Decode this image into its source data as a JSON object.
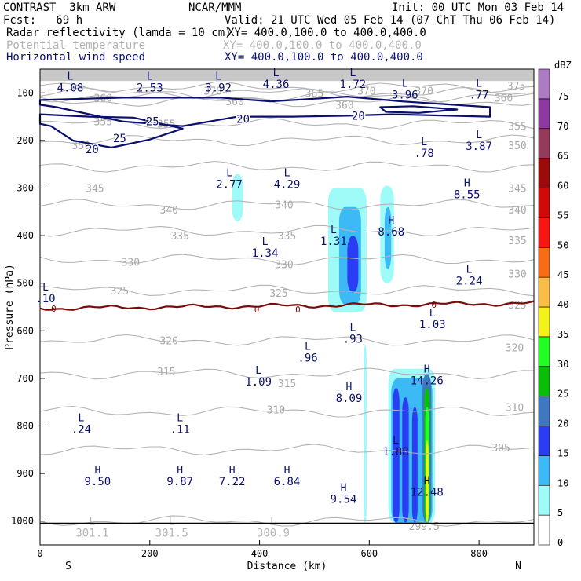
{
  "header": {
    "title": "CONTRAST  3km ARW",
    "org": "NCAR/MMM",
    "init": "Init: 00 UTC Mon 03 Feb 14",
    "fcst": "Fcst:   69 h",
    "valid": "Valid: 21 UTC Wed 05 Feb 14 (07 ChT Thu 06 Feb 14)",
    "fields": [
      {
        "name": "Radar reflectivity (lamda = 10 cm)",
        "xy": "XY= 400.0,100.0 to 400.0,400.0",
        "color": "#000000"
      },
      {
        "name": "Potential temperature",
        "xy": "XY= 400.0,100.0 to 400.0,400.0",
        "color": "#b4b4b4"
      },
      {
        "name": "Horizontal wind speed",
        "xy": "XY= 400.0,100.0 to 400.0,400.0",
        "color": "#0a0f6e"
      }
    ]
  },
  "chart_data": {
    "type": "cross-section",
    "xlabel": "Distance (km)",
    "ylabel": "Pressure (hPa)",
    "xlim": [
      0,
      900
    ],
    "ylim": [
      1050,
      50
    ],
    "xticks": [
      0,
      200,
      400,
      600,
      800
    ],
    "yticks": [
      100,
      200,
      300,
      400,
      500,
      600,
      700,
      800,
      900,
      1000
    ],
    "x_end_labels": {
      "left": "S",
      "right": "N"
    },
    "colorbar": {
      "unit": "dBZ",
      "levels": [
        0,
        5,
        10,
        15,
        20,
        25,
        30,
        35,
        40,
        45,
        50,
        55,
        60,
        65,
        70,
        75
      ],
      "colors": [
        "#ffffff",
        "#9ffbf7",
        "#3cbaf5",
        "#2b3df2",
        "#3f78be",
        "#07bf06",
        "#22ff22",
        "#f3f219",
        "#fabe46",
        "#f96b15",
        "#f91515",
        "#d10909",
        "#9c0a0a",
        "#953a5a",
        "#8d399f",
        "#ad7ac4"
      ]
    },
    "theta_levels": [
      300,
      305,
      310,
      315,
      320,
      325,
      330,
      335,
      340,
      345,
      350,
      355,
      360,
      365,
      370,
      375
    ],
    "theta_labels": [
      {
        "text": "375",
        "x": 868,
        "p": 85
      },
      {
        "text": "370",
        "x": 595,
        "p": 95
      },
      {
        "text": "370",
        "x": 700,
        "p": 95
      },
      {
        "text": "370",
        "x": 315,
        "p": 95
      },
      {
        "text": "365",
        "x": 500,
        "p": 100
      },
      {
        "text": "360",
        "x": 115,
        "p": 110
      },
      {
        "text": "360",
        "x": 845,
        "p": 110
      },
      {
        "text": "360",
        "x": 555,
        "p": 125
      },
      {
        "text": "360",
        "x": 355,
        "p": 118
      },
      {
        "text": "355",
        "x": 115,
        "p": 160
      },
      {
        "text": "355",
        "x": 230,
        "p": 165
      },
      {
        "text": "355",
        "x": 870,
        "p": 170
      },
      {
        "text": "350",
        "x": 75,
        "p": 210
      },
      {
        "text": "350",
        "x": 870,
        "p": 210
      },
      {
        "text": "345",
        "x": 100,
        "p": 300
      },
      {
        "text": "345",
        "x": 870,
        "p": 300
      },
      {
        "text": "340",
        "x": 235,
        "p": 345
      },
      {
        "text": "340",
        "x": 445,
        "p": 335
      },
      {
        "text": "340",
        "x": 870,
        "p": 345
      },
      {
        "text": "335",
        "x": 255,
        "p": 400
      },
      {
        "text": "335",
        "x": 450,
        "p": 400
      },
      {
        "text": "335",
        "x": 870,
        "p": 410
      },
      {
        "text": "330",
        "x": 165,
        "p": 455
      },
      {
        "text": "330",
        "x": 445,
        "p": 460
      },
      {
        "text": "330",
        "x": 870,
        "p": 480
      },
      {
        "text": "325",
        "x": 145,
        "p": 515
      },
      {
        "text": "325",
        "x": 435,
        "p": 520
      },
      {
        "text": "325",
        "x": 870,
        "p": 545
      },
      {
        "text": "320",
        "x": 235,
        "p": 620
      },
      {
        "text": "320",
        "x": 865,
        "p": 635
      },
      {
        "text": "315",
        "x": 230,
        "p": 685
      },
      {
        "text": "315",
        "x": 450,
        "p": 710
      },
      {
        "text": "310",
        "x": 430,
        "p": 765
      },
      {
        "text": "310",
        "x": 865,
        "p": 760
      },
      {
        "text": "305",
        "x": 840,
        "p": 845
      },
      {
        "text": "299.5",
        "x": 700,
        "p": 1010
      }
    ],
    "wind_contours": [
      20,
      25
    ],
    "wind_labels": [
      {
        "text": "25",
        "x": 205,
        "p": 160
      },
      {
        "text": "25",
        "x": 145,
        "p": 195
      },
      {
        "text": "20",
        "x": 95,
        "p": 218
      },
      {
        "text": "20",
        "x": 370,
        "p": 155
      },
      {
        "text": "20",
        "x": 580,
        "p": 148
      }
    ],
    "zero_line_labels": [
      {
        "text": "0",
        "x": 25,
        "p": 553
      },
      {
        "text": "0",
        "x": 395,
        "p": 555
      },
      {
        "text": "0",
        "x": 470,
        "p": 555
      },
      {
        "text": "0",
        "x": 718,
        "p": 545
      }
    ],
    "extrema": [
      {
        "kind": "L",
        "value": "4.08",
        "x": 55,
        "p": 72
      },
      {
        "kind": "L",
        "value": "2.53",
        "x": 200,
        "p": 72
      },
      {
        "kind": "L",
        "value": "3.92",
        "x": 325,
        "p": 72
      },
      {
        "kind": "L",
        "value": "4.36",
        "x": 430,
        "p": 65
      },
      {
        "kind": "L",
        "value": "1.72",
        "x": 570,
        "p": 65
      },
      {
        "kind": "L",
        "value": "3.96",
        "x": 665,
        "p": 87
      },
      {
        "kind": "L",
        "value": ".77",
        "x": 800,
        "p": 87
      },
      {
        "kind": "L",
        "value": ".78",
        "x": 700,
        "p": 210
      },
      {
        "kind": "L",
        "value": "3.87",
        "x": 800,
        "p": 195
      },
      {
        "kind": "L",
        "value": "2.77",
        "x": 345,
        "p": 275
      },
      {
        "kind": "L",
        "value": "4.29",
        "x": 450,
        "p": 275
      },
      {
        "kind": "H",
        "value": "8.55",
        "x": 778,
        "p": 297
      },
      {
        "kind": "H",
        "value": "8.68",
        "x": 640,
        "p": 375
      },
      {
        "kind": "L",
        "value": "1.31",
        "x": 535,
        "p": 395
      },
      {
        "kind": "L",
        "value": "1.34",
        "x": 410,
        "p": 420
      },
      {
        "kind": "L",
        "value": "2.24",
        "x": 782,
        "p": 478
      },
      {
        "kind": "L",
        "value": ".10",
        "x": 10,
        "p": 515
      },
      {
        "kind": "L",
        "value": "1.03",
        "x": 715,
        "p": 570
      },
      {
        "kind": "L",
        "value": ".93",
        "x": 570,
        "p": 600
      },
      {
        "kind": "L",
        "value": ".96",
        "x": 488,
        "p": 640
      },
      {
        "kind": "L",
        "value": "1.09",
        "x": 398,
        "p": 690
      },
      {
        "kind": "H",
        "value": "14.26",
        "x": 705,
        "p": 688
      },
      {
        "kind": "H",
        "value": "8.09",
        "x": 563,
        "p": 725
      },
      {
        "kind": "L",
        "value": ".24",
        "x": 75,
        "p": 790
      },
      {
        "kind": "L",
        "value": ".11",
        "x": 255,
        "p": 790
      },
      {
        "kind": "L",
        "value": "1.88",
        "x": 648,
        "p": 837
      },
      {
        "kind": "H",
        "value": "9.50",
        "x": 105,
        "p": 900
      },
      {
        "kind": "H",
        "value": "9.87",
        "x": 255,
        "p": 900
      },
      {
        "kind": "H",
        "value": "7.22",
        "x": 350,
        "p": 900
      },
      {
        "kind": "H",
        "value": "6.84",
        "x": 450,
        "p": 900
      },
      {
        "kind": "H",
        "value": "12.48",
        "x": 705,
        "p": 922
      },
      {
        "kind": "H",
        "value": "9.54",
        "x": 553,
        "p": 937
      },
      {
        "kind": "L",
        "value": "301.1",
        "x": 95,
        "p": 1008
      },
      {
        "kind": "L",
        "value": "301.5",
        "x": 240,
        "p": 1008
      },
      {
        "kind": "L",
        "value": "300.9",
        "x": 425,
        "p": 1008
      }
    ],
    "reflectivity_cells": [
      {
        "x0": 350,
        "x1": 370,
        "ptop": 270,
        "pbot": 370,
        "dbz": 5
      },
      {
        "x0": 525,
        "x1": 595,
        "ptop": 300,
        "pbot": 560,
        "dbz": 5
      },
      {
        "x0": 545,
        "x1": 585,
        "ptop": 340,
        "pbot": 545,
        "dbz": 10
      },
      {
        "x0": 560,
        "x1": 580,
        "ptop": 400,
        "pbot": 520,
        "dbz": 15
      },
      {
        "x0": 620,
        "x1": 645,
        "ptop": 295,
        "pbot": 500,
        "dbz": 5
      },
      {
        "x0": 628,
        "x1": 640,
        "ptop": 340,
        "pbot": 470,
        "dbz": 10
      },
      {
        "x0": 590,
        "x1": 595,
        "ptop": 630,
        "pbot": 1005,
        "dbz": 5
      },
      {
        "x0": 635,
        "x1": 720,
        "ptop": 680,
        "pbot": 1005,
        "dbz": 5
      },
      {
        "x0": 640,
        "x1": 715,
        "ptop": 700,
        "pbot": 1005,
        "dbz": 10
      },
      {
        "x0": 643,
        "x1": 655,
        "ptop": 720,
        "pbot": 1003,
        "dbz": 15
      },
      {
        "x0": 660,
        "x1": 672,
        "ptop": 740,
        "pbot": 1003,
        "dbz": 15
      },
      {
        "x0": 678,
        "x1": 688,
        "ptop": 760,
        "pbot": 1003,
        "dbz": 15
      },
      {
        "x0": 697,
        "x1": 713,
        "ptop": 690,
        "pbot": 1003,
        "dbz": 20
      },
      {
        "x0": 700,
        "x1": 710,
        "ptop": 720,
        "pbot": 1003,
        "dbz": 25
      },
      {
        "x0": 702,
        "x1": 709,
        "ptop": 760,
        "pbot": 1003,
        "dbz": 30
      },
      {
        "x0": 703,
        "x1": 708,
        "ptop": 830,
        "pbot": 1003,
        "dbz": 35
      }
    ]
  }
}
